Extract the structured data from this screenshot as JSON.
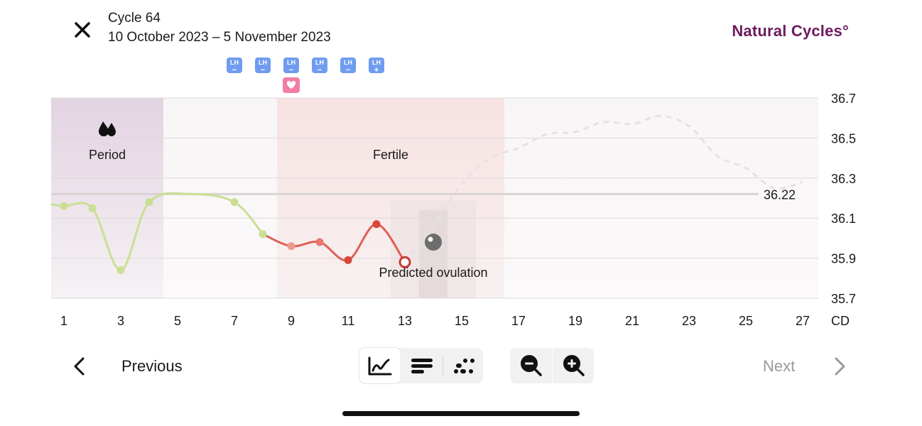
{
  "header": {
    "cycle_title": "Cycle 64",
    "date_range": "10 October 2023 – 5 November 2023",
    "brand": "Natural Cycles°",
    "brand_color": "#6d1a5e",
    "close_icon": "close-icon"
  },
  "lh_tests": {
    "badge_label": "LH",
    "results": [
      {
        "day": 7,
        "result": "negative",
        "symbol": "−"
      },
      {
        "day": 8,
        "result": "negative",
        "symbol": "−"
      },
      {
        "day": 9,
        "result": "negative",
        "symbol": "−"
      },
      {
        "day": 10,
        "result": "negative",
        "symbol": "−"
      },
      {
        "day": 11,
        "result": "negative",
        "symbol": "−"
      },
      {
        "day": 12,
        "result": "positive",
        "symbol": "+"
      }
    ],
    "sex_day": 9
  },
  "chart_data": {
    "type": "line",
    "x_unit": "CD",
    "xlim": [
      0.5,
      28
    ],
    "ylim": [
      35.7,
      36.7
    ],
    "x_ticks": [
      1,
      3,
      5,
      7,
      9,
      11,
      13,
      15,
      17,
      19,
      21,
      23,
      25,
      27
    ],
    "y_ticks": [
      "36.7",
      "36.5",
      "36.3",
      "36.1",
      "35.9",
      "35.7"
    ],
    "coverline": 36.22,
    "coverline_label": "36.22",
    "zones": [
      {
        "name": "period",
        "label": "Period",
        "from_day": 0.5,
        "to_day": 4.5,
        "icon": "period-drops-icon"
      },
      {
        "name": "fertile",
        "label": "Fertile",
        "from_day": 8.5,
        "to_day": 16.5
      }
    ],
    "ovulation_label": "Predicted ovulation",
    "ovulation_day": 14,
    "ovulation_value": 35.98,
    "measured": [
      {
        "day": 1,
        "value": 36.16
      },
      {
        "day": 2,
        "value": 36.15
      },
      {
        "day": 3,
        "value": 35.84
      },
      {
        "day": 4,
        "value": 36.18
      },
      {
        "day": 7,
        "value": 36.18
      },
      {
        "day": 8,
        "value": 36.02
      },
      {
        "day": 9,
        "value": 35.96
      },
      {
        "day": 10,
        "value": 35.98
      },
      {
        "day": 11,
        "value": 35.89
      },
      {
        "day": 12,
        "value": 36.07
      },
      {
        "day": 13,
        "value": 35.88
      }
    ],
    "predicted": [
      {
        "day": 13,
        "value": 35.88
      },
      {
        "day": 14,
        "value": 36.06
      },
      {
        "day": 15,
        "value": 36.27
      },
      {
        "day": 16,
        "value": 36.4
      },
      {
        "day": 17,
        "value": 36.45
      },
      {
        "day": 18,
        "value": 36.52
      },
      {
        "day": 19,
        "value": 36.53
      },
      {
        "day": 20,
        "value": 36.58
      },
      {
        "day": 21,
        "value": 36.57
      },
      {
        "day": 22,
        "value": 36.61
      },
      {
        "day": 23,
        "value": 36.56
      },
      {
        "day": 24,
        "value": 36.41
      },
      {
        "day": 25,
        "value": 36.35
      },
      {
        "day": 26,
        "value": 36.25
      },
      {
        "day": 27,
        "value": 36.28
      }
    ],
    "colors": {
      "period_band": "#e2d3e1",
      "fertile_band": "#f7e2e2",
      "default_band": "#f8f5f6",
      "infertile_line": "#cadf93",
      "fertile_line": "#d9463b",
      "predicted_line": "#e6e1e1",
      "coverline": "#d9d3d3",
      "ovulation_marker": "#6d6d6d"
    }
  },
  "footer": {
    "previous_label": "Previous",
    "next_label": "Next",
    "view_modes": [
      "graph-view-icon",
      "bars-view-icon",
      "dots-view-icon"
    ],
    "active_view": "graph-view-icon",
    "zoom_out_icon": "zoom-out-icon",
    "zoom_in_icon": "zoom-in-icon"
  }
}
